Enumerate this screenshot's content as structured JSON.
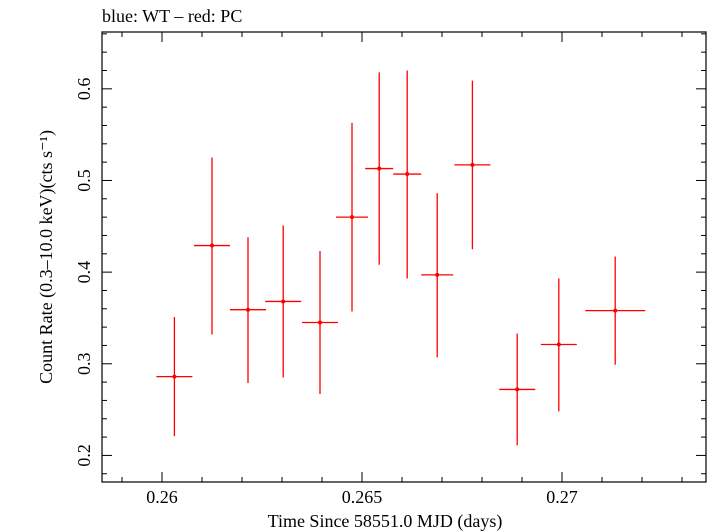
{
  "chart_data": {
    "type": "scatter",
    "title": "blue: WT – red: PC",
    "xlabel": "Time Since 58551.0 MJD (days)",
    "ylabel": "Count Rate (0.3–10.0 keV)(cts s⁻¹)",
    "xlim": [
      0.2585,
      0.2736
    ],
    "ylim": [
      0.171,
      0.662
    ],
    "x_ticks": [
      0.26,
      0.265,
      0.27
    ],
    "x_tick_labels": [
      "0.26",
      "0.265",
      "0.27"
    ],
    "y_ticks": [
      0.2,
      0.3,
      0.4,
      0.5,
      0.6
    ],
    "y_tick_labels": [
      "0.2",
      "0.3",
      "0.4",
      "0.5",
      "0.6"
    ],
    "grid": false,
    "series": [
      {
        "color": "#ff0000",
        "points": [
          {
            "x": 0.26031,
            "xerr": 0.00045,
            "y": 0.286,
            "yerr_lo": 0.065,
            "yerr_hi": 0.065
          },
          {
            "x": 0.26125,
            "xerr": 0.00045,
            "y": 0.429,
            "yerr_lo": 0.097,
            "yerr_hi": 0.096
          },
          {
            "x": 0.26215,
            "xerr": 0.00045,
            "y": 0.359,
            "yerr_lo": 0.08,
            "yerr_hi": 0.079
          },
          {
            "x": 0.26303,
            "xerr": 0.00045,
            "y": 0.368,
            "yerr_lo": 0.083,
            "yerr_hi": 0.083
          },
          {
            "x": 0.26395,
            "xerr": 0.00045,
            "y": 0.345,
            "yerr_lo": 0.078,
            "yerr_hi": 0.078
          },
          {
            "x": 0.26475,
            "xerr": 0.0004,
            "y": 0.46,
            "yerr_lo": 0.103,
            "yerr_hi": 0.103
          },
          {
            "x": 0.26543,
            "xerr": 0.00035,
            "y": 0.513,
            "yerr_lo": 0.105,
            "yerr_hi": 0.105
          },
          {
            "x": 0.26613,
            "xerr": 0.00035,
            "y": 0.507,
            "yerr_lo": 0.114,
            "yerr_hi": 0.113
          },
          {
            "x": 0.26688,
            "xerr": 0.0004,
            "y": 0.397,
            "yerr_lo": 0.09,
            "yerr_hi": 0.089
          },
          {
            "x": 0.26776,
            "xerr": 0.00045,
            "y": 0.517,
            "yerr_lo": 0.092,
            "yerr_hi": 0.092
          },
          {
            "x": 0.26888,
            "xerr": 0.00045,
            "y": 0.272,
            "yerr_lo": 0.061,
            "yerr_hi": 0.061
          },
          {
            "x": 0.26992,
            "xerr": 0.00045,
            "y": 0.321,
            "yerr_lo": 0.073,
            "yerr_hi": 0.072
          },
          {
            "x": 0.27133,
            "xerr": 0.00075,
            "y": 0.358,
            "yerr_lo": 0.059,
            "yerr_hi": 0.059
          }
        ]
      }
    ]
  }
}
